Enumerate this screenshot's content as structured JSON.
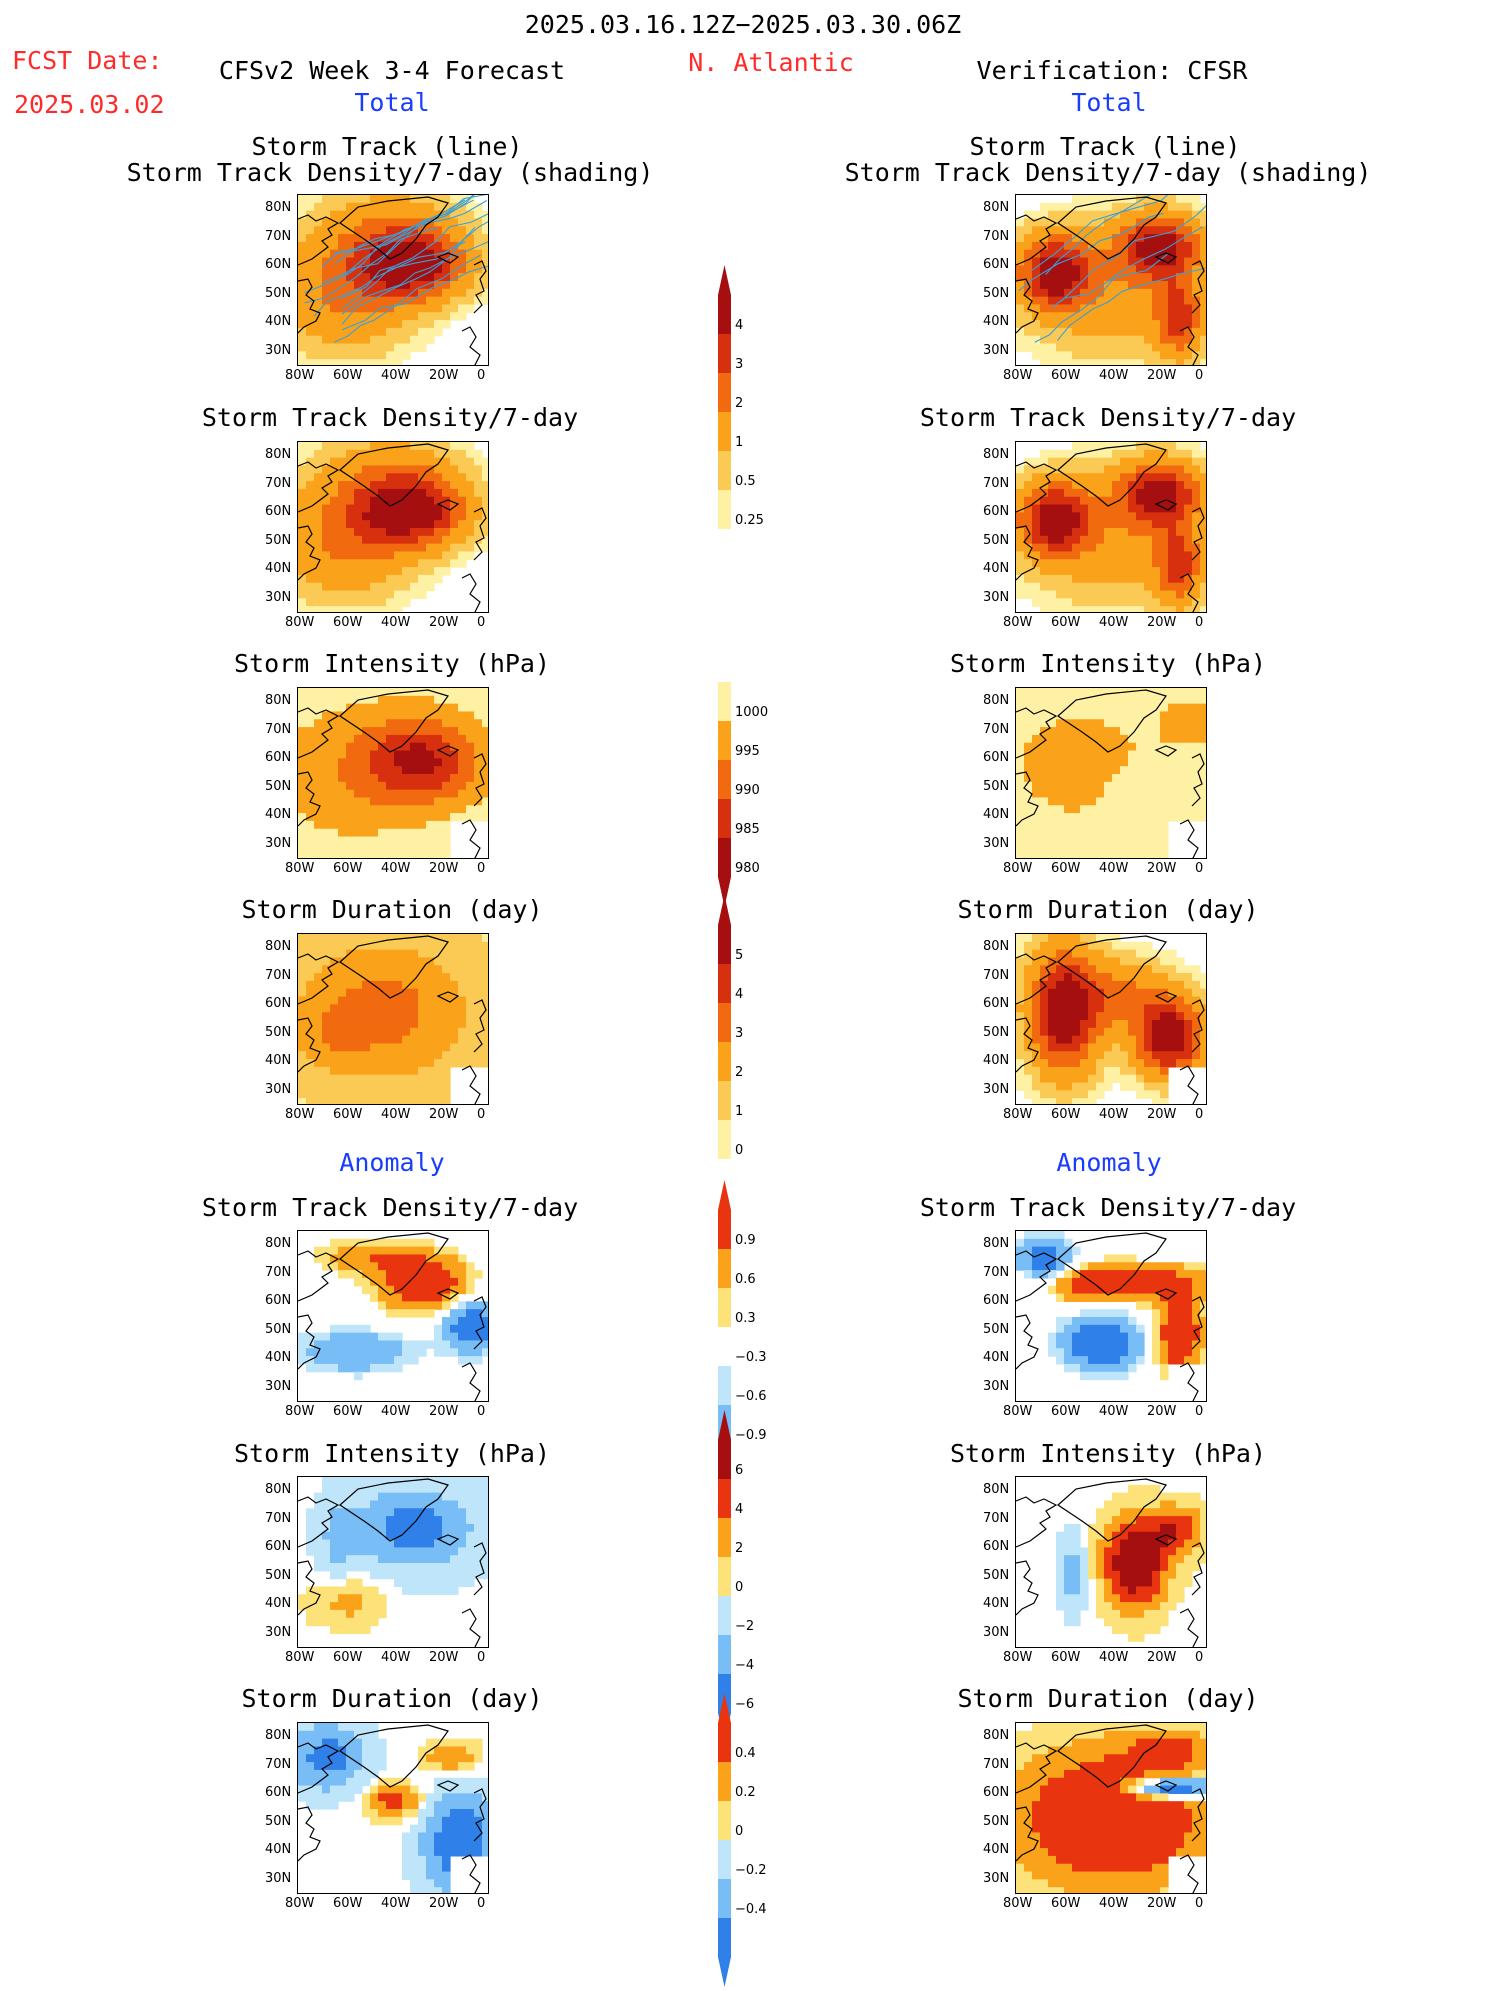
{
  "header": {
    "period": "2025.03.16.12Z−2025.03.30.06Z",
    "fcst_label": "FCST Date:",
    "fcst_date": "2025.03.02",
    "model_title": "CFSv2 Week 3-4 Forecast",
    "region": "N. Atlantic",
    "verification": "Verification: CFSR",
    "total_left": "Total",
    "total_right": "Total",
    "anomaly_left": "Anomaly",
    "anomaly_right": "Anomaly"
  },
  "panel_titles": {
    "track_line": "Storm Track (line)",
    "track_shading": "Storm Track Density/7-day (shading)",
    "density": "Storm Track Density/7-day",
    "intensity": "Storm Intensity (hPa)",
    "duration": "Storm Duration (day)"
  },
  "axes": {
    "lat_labels": [
      "80N",
      "70N",
      "60N",
      "50N",
      "40N",
      "30N"
    ],
    "lon_labels": [
      "80W",
      "60W",
      "40W",
      "20W",
      "0"
    ]
  },
  "colors": {
    "track_line": "#3aa0d8",
    "title_red": "#ff2b2b",
    "title_blue": "#1a3cff"
  },
  "colorbars": {
    "density_total": {
      "levels": [
        "4",
        "3",
        "2",
        "1",
        "0.5",
        "0.25"
      ],
      "colors": [
        "#a50f0f",
        "#d7300f",
        "#f26a0f",
        "#f9a21a",
        "#fbca55",
        "#fef1a4"
      ]
    },
    "intensity_total": {
      "levels": [
        "1000",
        "995",
        "990",
        "985",
        "980"
      ],
      "colors": [
        "#fef1a4",
        "#f9a21a",
        "#f26a0f",
        "#d7300f",
        "#a50f0f"
      ]
    },
    "duration_total": {
      "levels": [
        "5",
        "4",
        "3",
        "2",
        "1",
        "0"
      ],
      "colors": [
        "#a50f0f",
        "#d7300f",
        "#f26a0f",
        "#f9a21a",
        "#fbca55",
        "#fef1a4"
      ]
    },
    "density_anom": {
      "levels": [
        "0.9",
        "0.6",
        "0.3",
        "−0.3",
        "−0.6",
        "−0.9"
      ],
      "colors": [
        "#e8350f",
        "#f9a21a",
        "#fde27a",
        "#ffffff",
        "#bfe5fb",
        "#78bdf5",
        "#2f80e8"
      ]
    },
    "intensity_anom": {
      "levels": [
        "6",
        "4",
        "2",
        "0",
        "−2",
        "−4",
        "−6"
      ],
      "colors": [
        "#a50f0f",
        "#e8350f",
        "#f9a21a",
        "#fde27a",
        "#bfe5fb",
        "#78bdf5",
        "#2f80e8"
      ]
    },
    "duration_anom": {
      "levels": [
        "0.4",
        "0.2",
        "0",
        "−0.2",
        "−0.4"
      ],
      "colors": [
        "#e8350f",
        "#f9a21a",
        "#fde27a",
        "#bfe5fb",
        "#78bdf5",
        "#2f80e8"
      ]
    }
  },
  "chart_data": [
    {
      "type": "heatmap",
      "panel": "forecast-track-density-with-tracks",
      "title": "Storm Track (line) / Storm Track Density/7-day (shading)",
      "lon": [
        "80W",
        "60W",
        "40W",
        "20W",
        "0"
      ],
      "lat": [
        "30N",
        "40N",
        "50N",
        "60N",
        "70N",
        "80N"
      ],
      "summary": "Forecast density maximum (>4) centered ~60N 30W over the N. Atlantic; storm tracks spread 35N-75N"
    },
    {
      "type": "heatmap",
      "panel": "verif-track-density-with-tracks",
      "title": "Storm Track (line) / Storm Track Density/7-day (shading)",
      "summary": "CFSR density maxima near 60N 65W and 65N 20W with secondary maximum near 45N 15W"
    },
    {
      "type": "heatmap",
      "panel": "forecast-density",
      "title": "Storm Track Density/7-day",
      "summary": "Maximum >4 near 60N 30W"
    },
    {
      "type": "heatmap",
      "panel": "verif-density",
      "title": "Storm Track Density/7-day",
      "summary": "Maxima near 60N 65W and 65N 20W"
    },
    {
      "type": "heatmap",
      "panel": "forecast-intensity",
      "title": "Storm Intensity (hPa)",
      "summary": "Lowest pressures (<985) near 60N 30W"
    },
    {
      "type": "heatmap",
      "panel": "verif-intensity",
      "title": "Storm Intensity (hPa)",
      "summary": "Mostly 990-1000; weaker storms in central Atlantic"
    },
    {
      "type": "heatmap",
      "panel": "forecast-duration",
      "title": "Storm Duration (day)",
      "summary": "Durations 2-4 days across basin"
    },
    {
      "type": "heatmap",
      "panel": "verif-duration",
      "title": "Storm Duration (day)",
      "summary": "Long durations (>5) along tracks near 60N 60W and 45N 15W"
    },
    {
      "type": "heatmap",
      "panel": "forecast-density-anom",
      "title": "Storm Track Density/7-day",
      "summary": "Positive anomaly (+0.9) near 60N 25W; negative near 45N 20W and 40N 60W"
    },
    {
      "type": "heatmap",
      "panel": "verif-density-anom",
      "title": "Storm Track Density/7-day",
      "summary": "Positive along 55N and 45N 15W; negative over 40N 40W and 70N 65W"
    },
    {
      "type": "heatmap",
      "panel": "forecast-intensity-anom",
      "title": "Storm Intensity (hPa)",
      "summary": "Negative anomaly (deeper storms) over northern Atlantic; positive near 45N 55W"
    },
    {
      "type": "heatmap",
      "panel": "verif-intensity-anom",
      "title": "Storm Intensity (hPa)",
      "summary": "Strong positive anomaly (+6) over central Atlantic 45N-60N"
    },
    {
      "type": "heatmap",
      "panel": "forecast-duration-anom",
      "title": "Storm Duration (day)",
      "summary": "Negative anomalies over western and southeastern Atlantic; positive near 58N 35W"
    },
    {
      "type": "heatmap",
      "panel": "verif-duration-anom",
      "title": "Storm Duration (day)",
      "summary": "Positive (+0.4) across much of the basin; negative band near 60N 10W"
    }
  ]
}
